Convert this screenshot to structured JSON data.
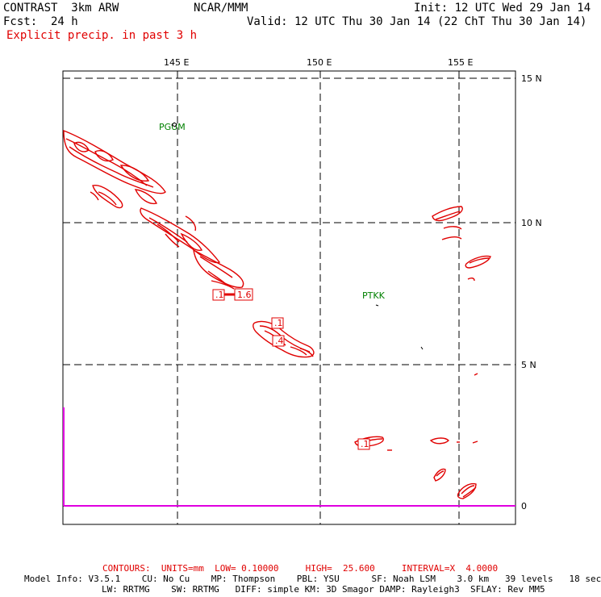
{
  "header": {
    "model": "CONTRAST  3km ARW",
    "org": "NCAR/MMM",
    "init": "Init: 12 UTC Wed 29 Jan 14",
    "fcst": "Fcst:  24 h",
    "valid": "Valid: 12 UTC Thu 30 Jan 14 (22 ChT Thu 30 Jan 14)",
    "field": "Explicit precip. in past 3 h"
  },
  "map": {
    "lon_labels": [
      "145 E",
      "150 E",
      "155 E"
    ],
    "lat_labels": [
      "15 N",
      "10 N",
      "5 N",
      "0"
    ],
    "stations": [
      "PGUM",
      "PTKK"
    ],
    "contour_labels": [
      ".1",
      "1.6",
      ".1",
      ".4",
      ".1"
    ],
    "colors": {
      "contour": "#e00000",
      "station": "#008000",
      "axis_bar": "#e000e0",
      "grid": "#000000"
    }
  },
  "footer": {
    "contours": "CONTOURS:  UNITS=mm  LOW= 0.10000     HIGH=  25.600     INTERVAL=X  4.0000",
    "info1": "Model Info: V3.5.1    CU: No Cu    MP: Thompson    PBL: YSU      SF: Noah LSM    3.0 km   39 levels   18 sec",
    "info2": "LW: RRTMG    SW: RRTMG   DIFF: simple KM: 3D Smagor DAMP: Rayleigh3  SFLAY: Rev MM5"
  }
}
